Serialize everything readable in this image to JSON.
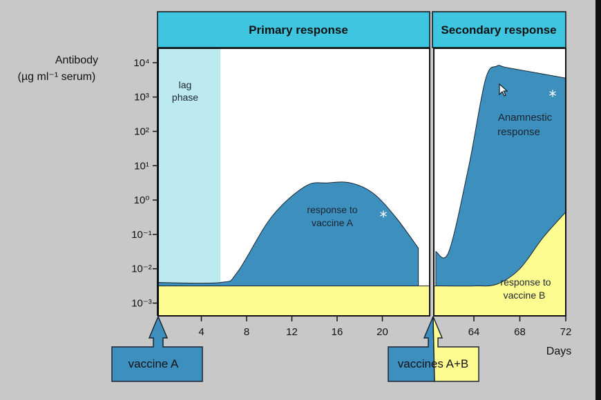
{
  "chart_data": {
    "type": "area",
    "ylabel_lines": [
      "Antibody",
      "(µg ml⁻¹ serum)"
    ],
    "xlabel": "Days",
    "y_scale": "log",
    "y_exponents": [
      4,
      3,
      2,
      1,
      0,
      -1,
      -2,
      -3
    ],
    "y_tick_labels": [
      "10⁴",
      "10³",
      "10²",
      "10¹",
      "10⁰",
      "10⁻¹",
      "10⁻²",
      "10⁻³"
    ],
    "primary": {
      "banner": "Primary response",
      "x_ticks": [
        4,
        8,
        12,
        16,
        20
      ],
      "x_tick_labels": [
        "4",
        "8",
        "12",
        "16",
        "20"
      ],
      "x_range": [
        0,
        24
      ],
      "lag_phase_end_day": 5.5,
      "lag_phase_label": [
        "lag",
        "phase"
      ]
    },
    "secondary": {
      "banner": "Secondary response",
      "x_ticks": [
        64,
        68,
        72
      ],
      "x_tick_labels": [
        "64",
        "68",
        "72"
      ],
      "x_range": [
        60,
        72
      ]
    },
    "series": [
      {
        "name": "response to vaccine A",
        "color": "#3d8fbd",
        "primary_points": [
          [
            0,
            -2.4
          ],
          [
            5.5,
            -2.4
          ],
          [
            7,
            -2.1
          ],
          [
            10,
            -0.5
          ],
          [
            13,
            0.4
          ],
          [
            15,
            0.5
          ],
          [
            17,
            0.5
          ],
          [
            19,
            0.2
          ],
          [
            21,
            -0.5
          ],
          [
            23,
            -1.4
          ]
        ],
        "secondary_points": [
          [
            60.2,
            -1.5
          ],
          [
            61.5,
            -1.5
          ],
          [
            63.5,
            1.0
          ],
          [
            65,
            3.5
          ],
          [
            66,
            3.9
          ],
          [
            67,
            3.85
          ],
          [
            72,
            3.55
          ]
        ]
      },
      {
        "name": "response to vaccine B",
        "color": "#fefb91",
        "primary_points": [
          [
            0,
            -2.5
          ],
          [
            24,
            -2.5
          ]
        ],
        "secondary_points": [
          [
            60,
            -2.5
          ],
          [
            64,
            -2.5
          ],
          [
            66,
            -2.45
          ],
          [
            68,
            -2.0
          ],
          [
            70,
            -1.1
          ],
          [
            72,
            -0.35
          ]
        ]
      }
    ],
    "annotations": {
      "response_a": [
        "response to",
        "vaccine A"
      ],
      "anamnestic": [
        "Anamnestic",
        "response"
      ],
      "response_b": [
        "response to",
        "vaccine B"
      ],
      "star": "*"
    },
    "grid": false,
    "legend": "none"
  },
  "callouts": {
    "vaccine_a": "vaccine A",
    "vaccines_ab": "vaccines A+B"
  },
  "colors": {
    "banner": "#3ec6e0",
    "lag_phase": "#bde9f1",
    "plot_bg": "#ffffff",
    "vaccine_a_blue": "#3d8fbd",
    "vaccine_b_yellow": "#fefb91"
  }
}
